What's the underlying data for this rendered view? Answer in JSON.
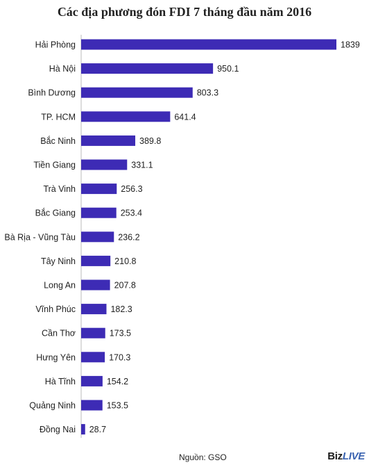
{
  "chart_data": {
    "type": "bar",
    "orientation": "horizontal",
    "title": "Các địa phương đón FDI 7 tháng đầu năm 2016",
    "categories": [
      "Hải Phòng",
      "Hà Nội",
      "Bình Dương",
      "TP. HCM",
      "Bắc Ninh",
      "Tiền Giang",
      "Trà Vinh",
      "Bắc Giang",
      "Bà Rịa - Vũng Tàu",
      "Tây Ninh",
      "Long An",
      "Vĩnh Phúc",
      "Cần Thơ",
      "Hưng Yên",
      "Hà Tĩnh",
      "Quảng Ninh",
      "Đồng Nai"
    ],
    "values": [
      1839,
      950.1,
      803.3,
      641.4,
      389.8,
      331.1,
      256.3,
      253.4,
      236.2,
      210.8,
      207.8,
      182.3,
      173.5,
      170.3,
      154.2,
      153.5,
      28.7
    ],
    "value_labels": [
      "1839",
      "950.1",
      "803.3",
      "641.4",
      "389.8",
      "331.1",
      "256.3",
      "253.4",
      "236.2",
      "210.8",
      "207.8",
      "182.3",
      "173.5",
      "170.3",
      "154.2",
      "153.5",
      "28.7"
    ],
    "bar_color": "#3d2bb5",
    "grid": false,
    "legend": "none"
  },
  "source": "Nguồn:  GSO",
  "brand": {
    "part1": "Biz",
    "part2": "LIVE"
  }
}
